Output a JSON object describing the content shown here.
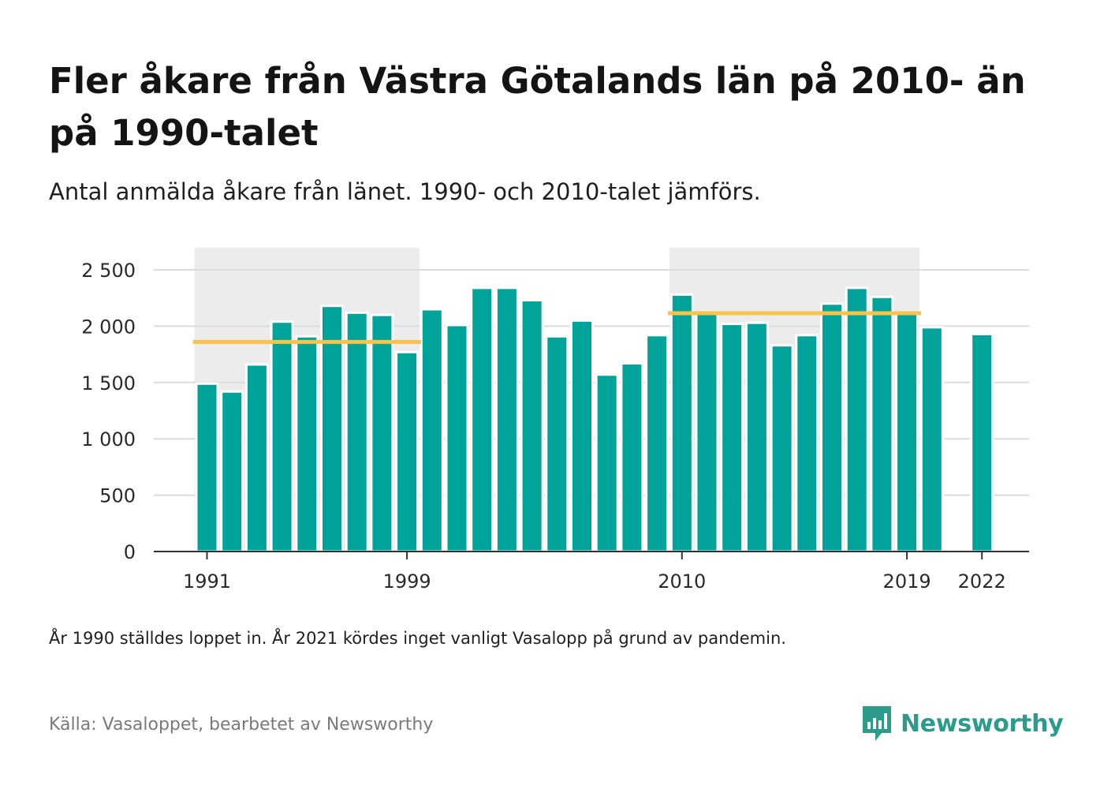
{
  "header": {
    "title": "Fler åkare från Västra Götalands län på 2010- än på 1990-talet",
    "subtitle": "Antal anmälda åkare från länet. 1990- och 2010-talet jämförs."
  },
  "footer": {
    "note": "År 1990 ställdes loppet in. År 2021 kördes inget vanligt Vasalopp på grund av pandemin.",
    "source": "Källa: Vasaloppet, bearbetet av Newsworthy",
    "brand": "Newsworthy"
  },
  "colors": {
    "bar": "#00a39a",
    "average_line": "#f9c24a",
    "decade_band": "#ececec",
    "gridline": "#dcdcdc",
    "axis": "#333333",
    "brand": "#2b9b8c"
  },
  "chart_data": {
    "type": "bar",
    "title": "Fler åkare från Västra Götalands län på 2010- än på 1990-talet",
    "subtitle": "Antal anmälda åkare från länet. 1990- och 2010-talet jämförs.",
    "x": [
      1991,
      1992,
      1993,
      1994,
      1995,
      1996,
      1997,
      1998,
      1999,
      2000,
      2001,
      2002,
      2003,
      2004,
      2005,
      2006,
      2007,
      2008,
      2009,
      2010,
      2011,
      2012,
      2013,
      2014,
      2015,
      2016,
      2017,
      2018,
      2019,
      2020,
      2022
    ],
    "values": [
      1490,
      1420,
      1660,
      2040,
      1910,
      2180,
      2120,
      2100,
      1770,
      2150,
      2010,
      2340,
      2340,
      2230,
      1910,
      2050,
      1570,
      1670,
      1920,
      2280,
      2120,
      2020,
      2030,
      1830,
      1920,
      2200,
      2340,
      2260,
      2110,
      1990,
      1930
    ],
    "x_tick_labels": [
      "1991",
      "1999",
      "2010",
      "2019",
      "2022"
    ],
    "y_ticks": [
      0,
      500,
      1000,
      1500,
      2000,
      2500
    ],
    "y_tick_labels": [
      "0",
      "500",
      "1 000",
      "1 500",
      "2 000",
      "2 500"
    ],
    "ylim": [
      0,
      2500
    ],
    "grid": true,
    "highlight_periods": [
      [
        1991,
        1999
      ],
      [
        2010,
        2019
      ]
    ],
    "average_lines": [
      {
        "from": 1991,
        "to": 1999,
        "value": 1860
      },
      {
        "from": 2010,
        "to": 2019,
        "value": 2115
      }
    ]
  }
}
